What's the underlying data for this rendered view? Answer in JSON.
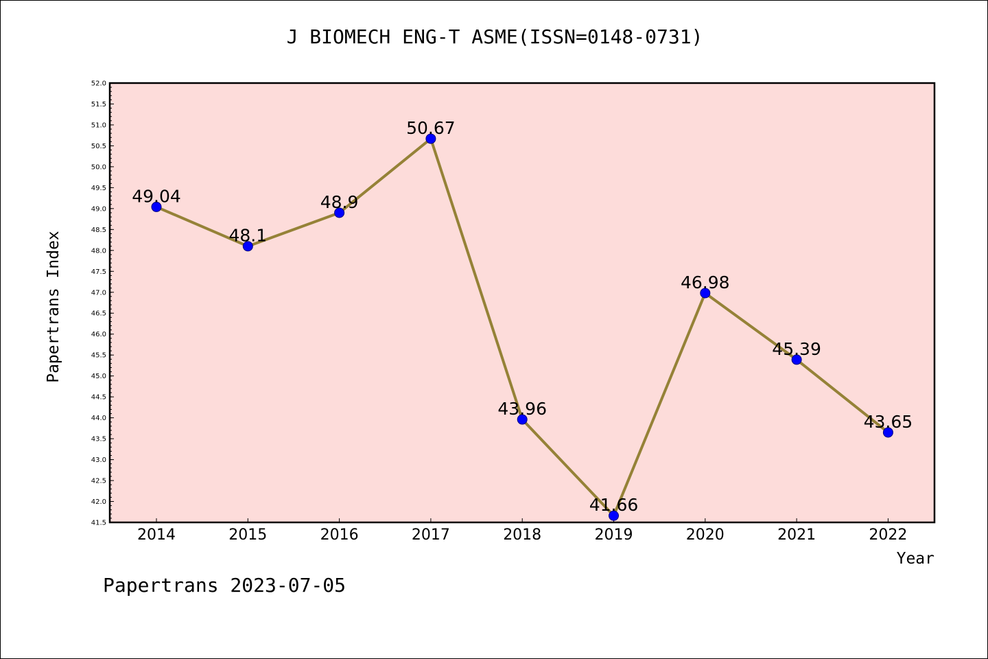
{
  "title": "J BIOMECH ENG-T ASME(ISSN=0148-0731)",
  "footer": "Papertrans 2023-07-05",
  "chart_data": {
    "type": "line",
    "title": "J BIOMECH ENG-T ASME(ISSN=0148-0731)",
    "xlabel": "Year",
    "ylabel": "Papertrans Index",
    "categories": [
      "2014",
      "2015",
      "2016",
      "2017",
      "2018",
      "2019",
      "2020",
      "2021",
      "2022"
    ],
    "values": [
      49.04,
      48.1,
      48.9,
      50.67,
      43.96,
      41.66,
      46.98,
      45.39,
      43.65
    ],
    "data_labels": [
      "49.04",
      "48.1",
      "48.9",
      "50.67",
      "43.96",
      "41.66",
      "46.98",
      "45.39",
      "43.65"
    ],
    "ylim": [
      41.5,
      52.0
    ],
    "yticks": [
      "41.5",
      "42.0",
      "42.5",
      "43.0",
      "43.5",
      "44.0",
      "44.5",
      "45.0",
      "45.5",
      "46.0",
      "46.5",
      "47.0",
      "47.5",
      "48.0",
      "48.5",
      "49.0",
      "49.5",
      "50.0",
      "50.5",
      "51.0",
      "51.5",
      "52.0"
    ],
    "grid": false,
    "legend": "none",
    "colors": {
      "plot_background": "#fddcda",
      "line": "#958237",
      "marker_fill": "#0000ff",
      "marker_edge": "#000080",
      "axes": "#000000"
    }
  }
}
